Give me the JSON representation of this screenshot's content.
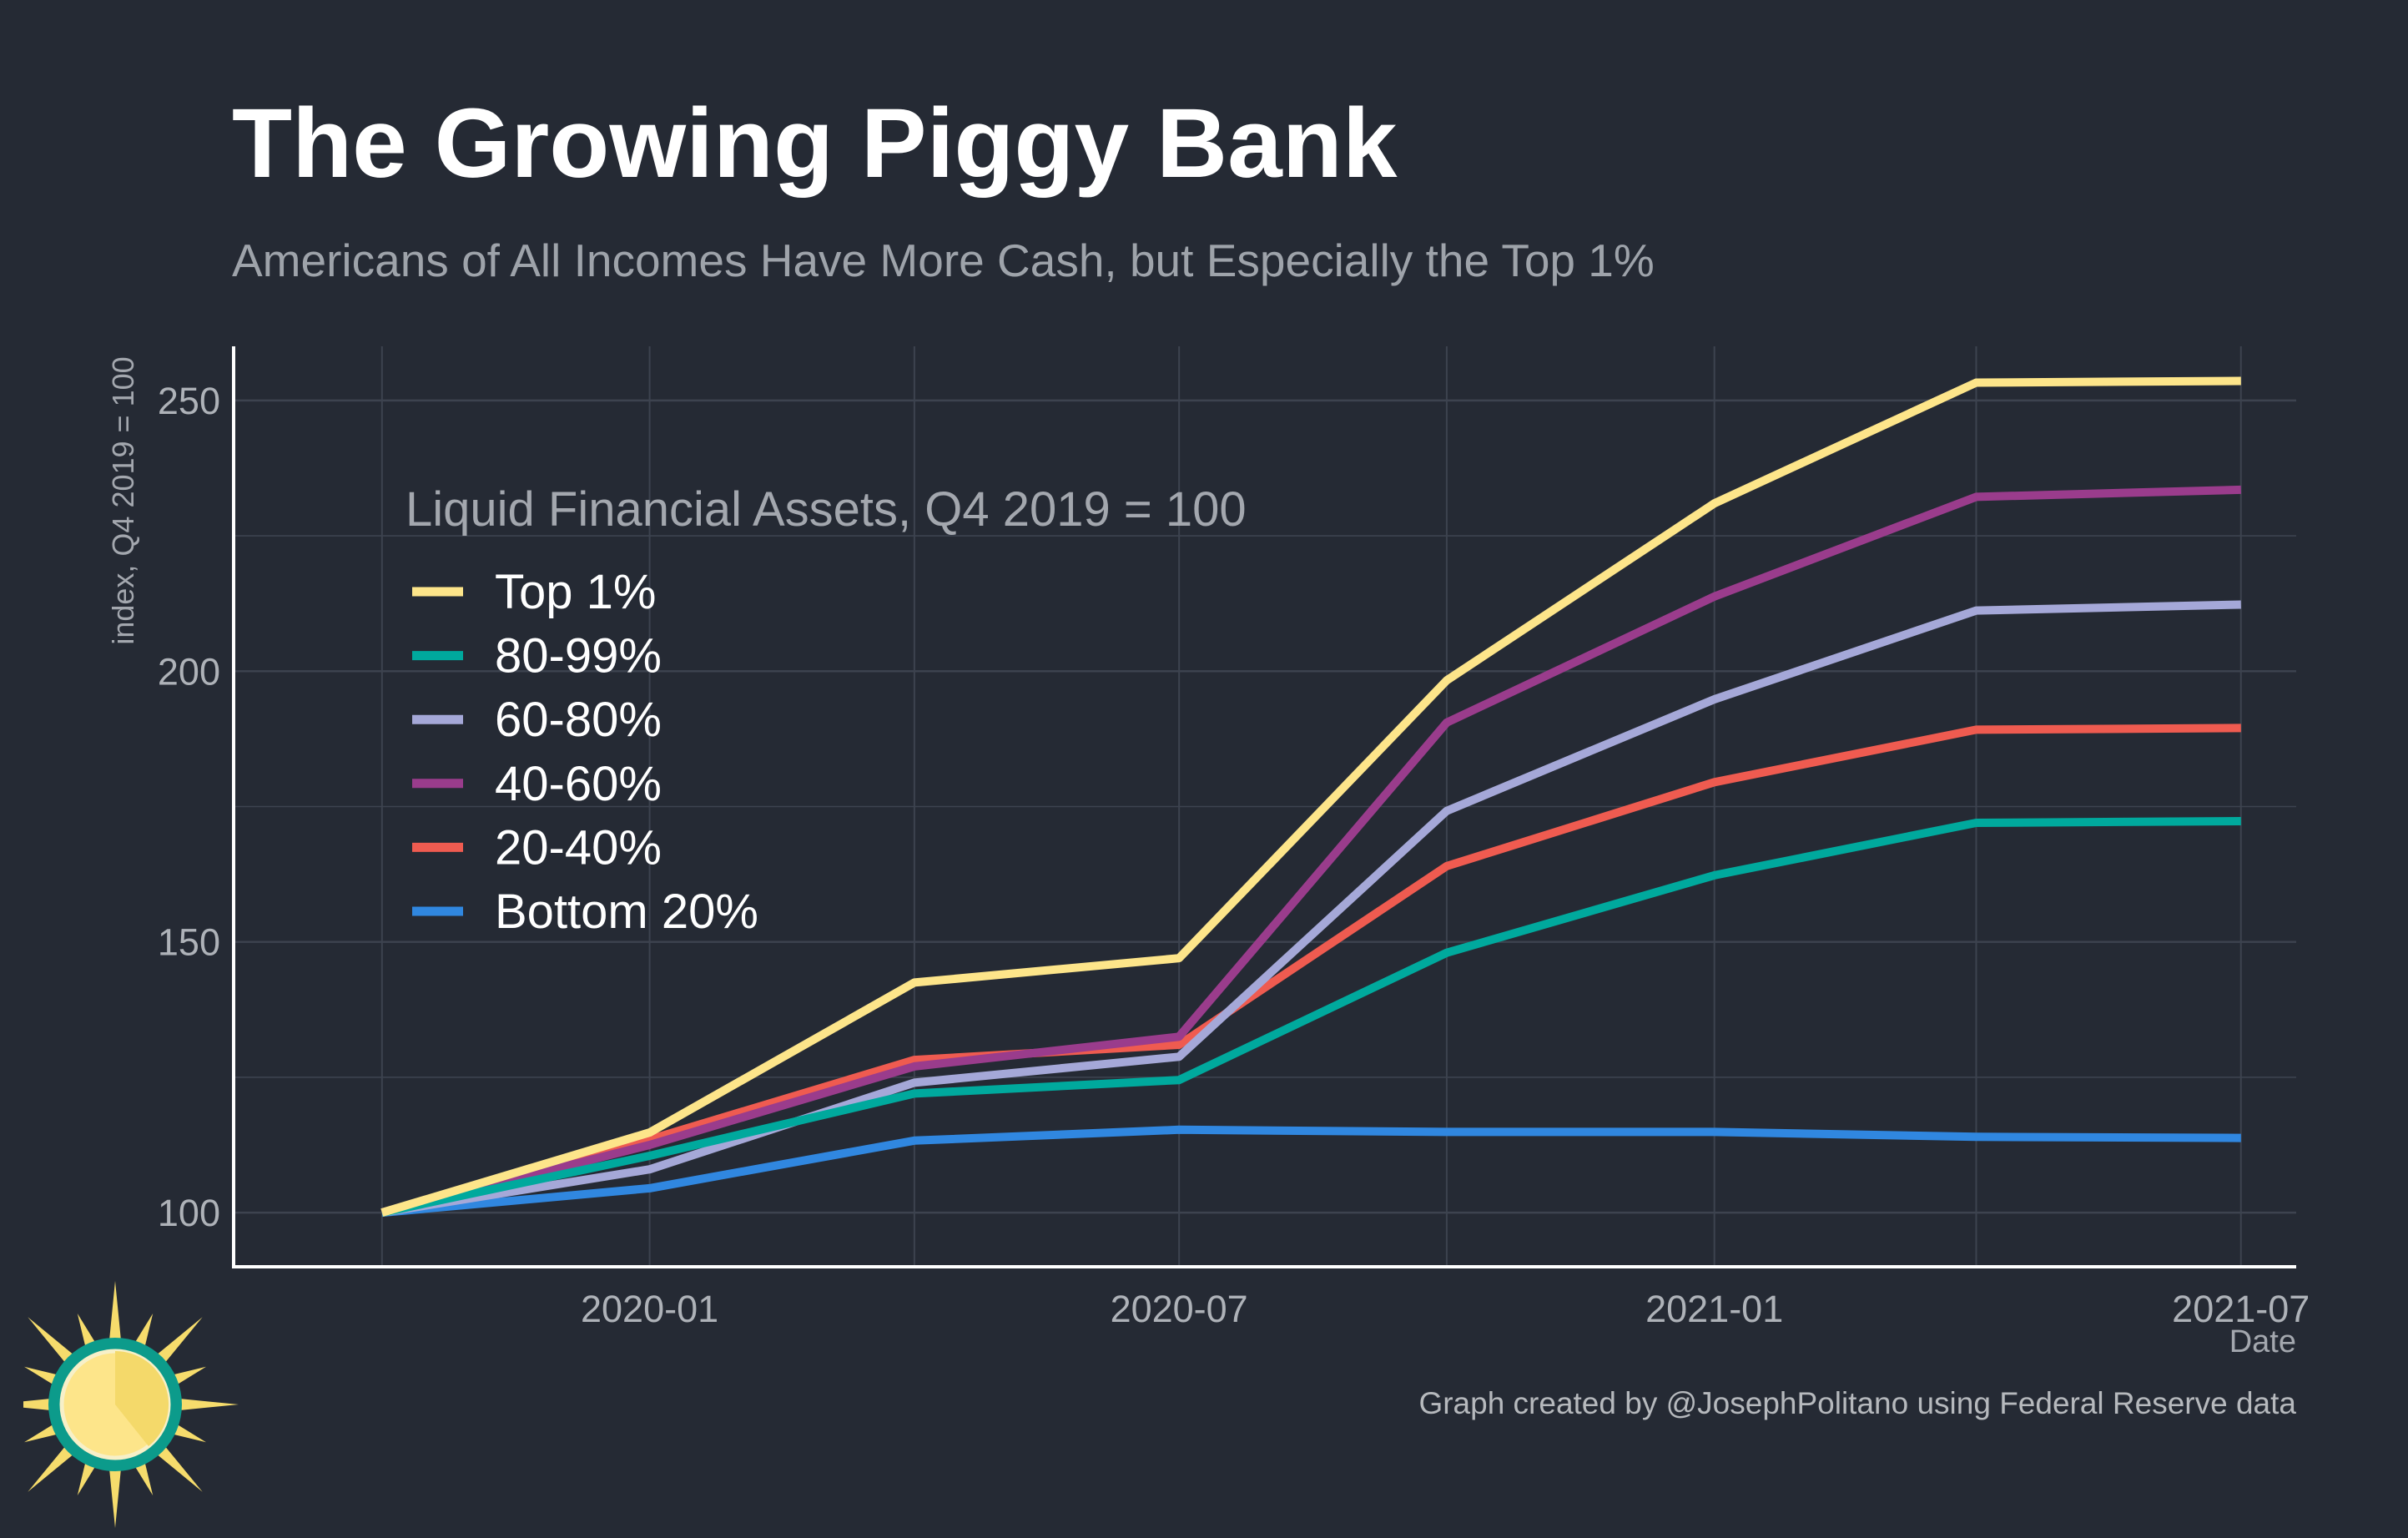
{
  "header": {
    "title": "The Growing Piggy Bank",
    "subtitle": "Americans of All Incomes Have More Cash, but Especially the Top 1%"
  },
  "caption": "Graph created by @JosephPolitano using Federal Reserve data",
  "chart_data": {
    "type": "line",
    "title": "The Growing Piggy Bank",
    "subtitle": "Americans of All Incomes Have More Cash, but Especially the Top 1%",
    "xlabel": "Date",
    "ylabel": "index, Q4 2019 = 100",
    "legend_title": "Liquid Financial Assets, Q4 2019 = 100",
    "legend_position": "top-left",
    "grid": true,
    "x": [
      "2019-10-01",
      "2020-01-01",
      "2020-04-01",
      "2020-07-01",
      "2020-10-01",
      "2021-01-01",
      "2021-04-01",
      "2021-07-01"
    ],
    "x_ticks": [
      "2020-01",
      "2020-07",
      "2021-01",
      "2021-07"
    ],
    "x_tick_dates": [
      "2020-01-01",
      "2020-07-01",
      "2021-01-01",
      "2021-07-01"
    ],
    "xlim": [
      "2019-08-11",
      "2021-07-20"
    ],
    "y_ticks": [
      100,
      150,
      200,
      250
    ],
    "ylim": [
      90,
      260
    ],
    "series": [
      {
        "name": "Top 1%",
        "color": "#fde58a",
        "values": [
          100,
          114.8,
          142.5,
          147.0,
          198.3,
          231.0,
          253.3,
          253.6
        ]
      },
      {
        "name": "80-99%",
        "color": "#00a99d",
        "values": [
          100,
          110.5,
          122.0,
          124.5,
          148.0,
          162.3,
          172.0,
          172.3
        ]
      },
      {
        "name": "60-80%",
        "color": "#a5a8d8",
        "values": [
          100,
          108.0,
          124.0,
          128.8,
          174.2,
          194.8,
          211.2,
          212.3
        ]
      },
      {
        "name": "40-60%",
        "color": "#9a3c8c",
        "values": [
          100,
          112.5,
          127.0,
          132.5,
          190.5,
          213.8,
          232.2,
          233.5
        ]
      },
      {
        "name": "20-40%",
        "color": "#ef5b50",
        "values": [
          100,
          113.5,
          128.2,
          131.0,
          164.0,
          179.5,
          189.2,
          189.5
        ]
      },
      {
        "name": "Bottom 20%",
        "color": "#3087e0",
        "values": [
          100,
          104.5,
          113.3,
          115.3,
          114.9,
          114.9,
          114.0,
          113.8
        ]
      }
    ],
    "colors": {
      "background": "#252a34",
      "grid": "#3d434f",
      "axis": "#ffffff",
      "tick_text": "#aeb2b8",
      "legend_text": "#ffffff",
      "legend_title": "#a3a7ae"
    }
  },
  "logo": {
    "icon": "sun-icon",
    "colors": {
      "ring": "#0c9b8b",
      "face": "#fde58a",
      "face_shade": "#f4d96a",
      "rays": "#f6dc6c"
    }
  }
}
